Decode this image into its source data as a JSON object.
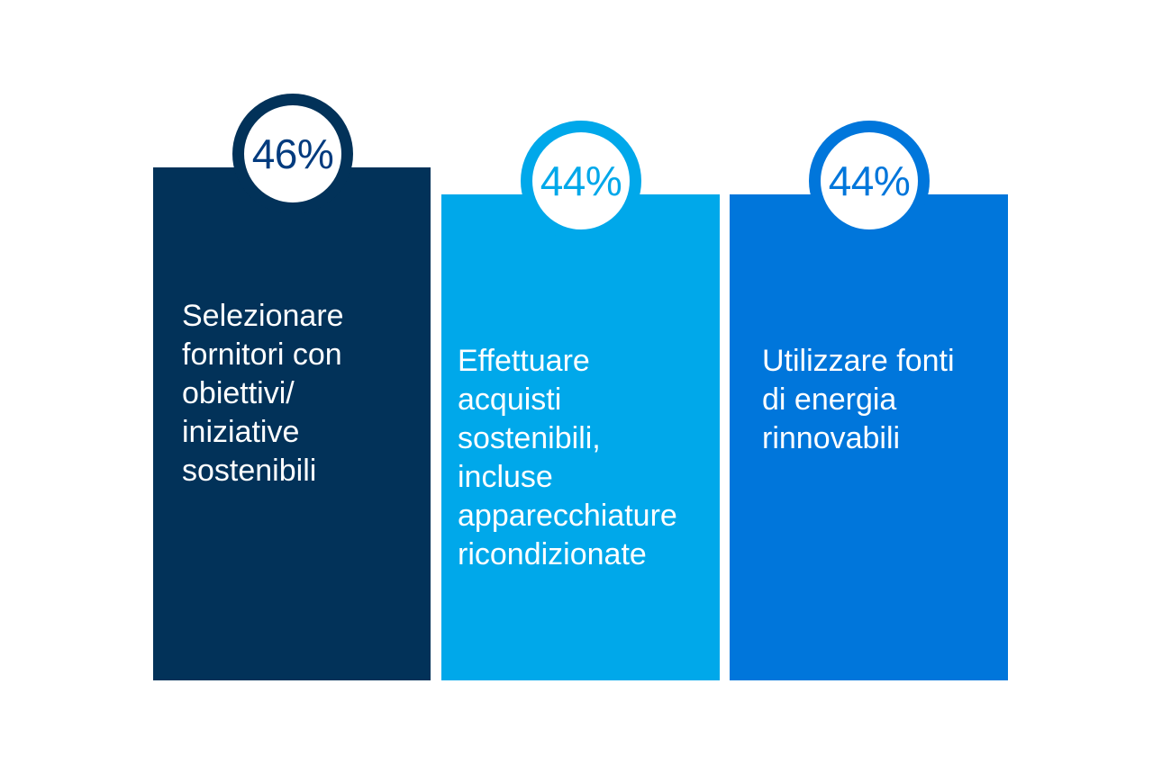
{
  "cards": [
    {
      "value": "46%",
      "text": "Selezionare\nfornitori con\nobiettivi/\niniziative\nsostenibili",
      "color": "#023259",
      "value_color": "#023B7E"
    },
    {
      "value": "44%",
      "text": "Effettuare\nacquisti\nsostenibili,\nincluse\napparecchiature\nricondizionate",
      "color": "#00A8EA",
      "value_color": "#00A8EA"
    },
    {
      "value": "44%",
      "text": "Utilizzare fonti\ndi energia\nrinnovabili",
      "color": "#0076DB",
      "value_color": "#0076DB"
    }
  ]
}
